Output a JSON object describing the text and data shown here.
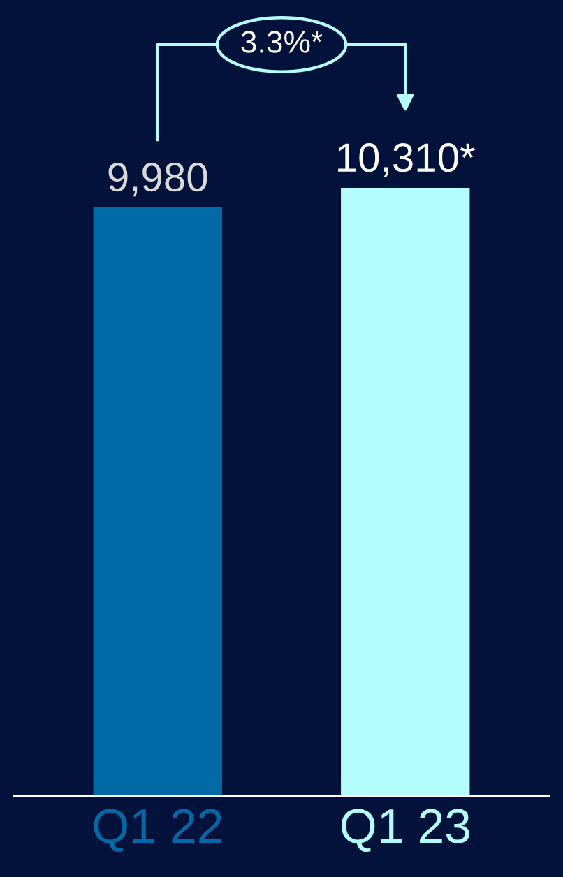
{
  "chart_data": {
    "type": "bar",
    "categories": [
      "Q1 22",
      "Q1 23"
    ],
    "values": [
      9980,
      10310
    ],
    "colors": [
      "#006aa6",
      "#b3fdfe"
    ],
    "value_labels": [
      "9,980",
      "10,310*"
    ],
    "annotations": [
      "3.3%*"
    ],
    "ylim": [
      0,
      13480
    ],
    "tick_labels": "x",
    "grid": false,
    "legend": false
  }
}
